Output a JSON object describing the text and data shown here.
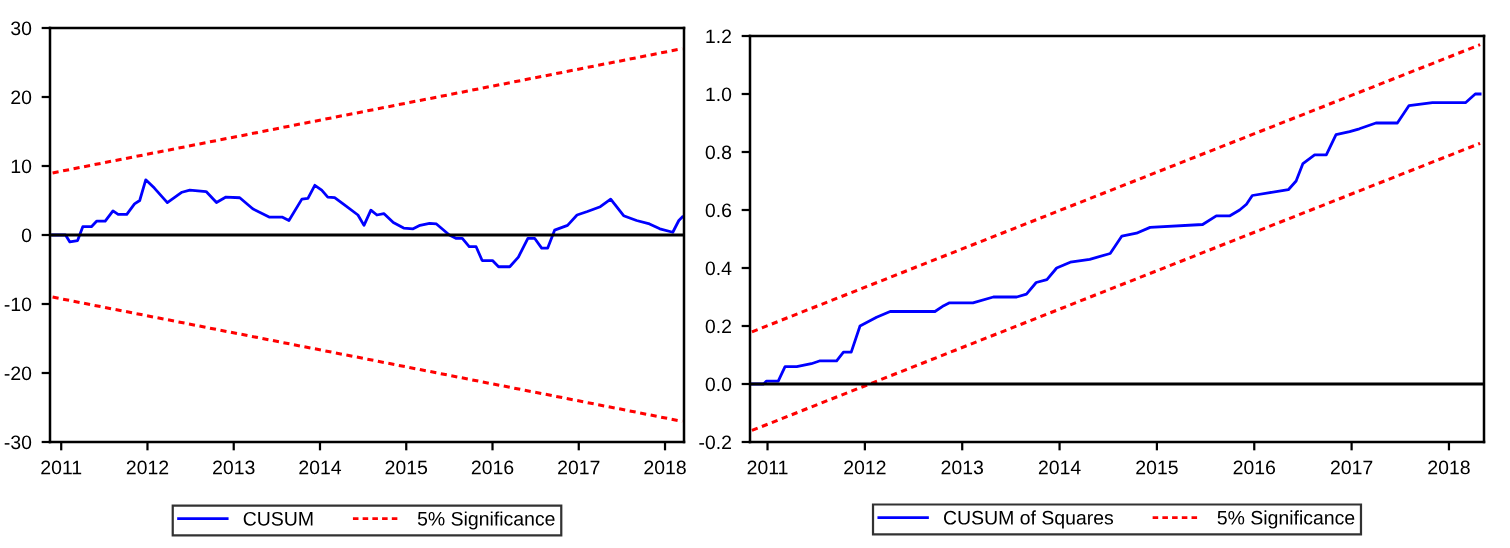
{
  "chart_data": [
    {
      "type": "line",
      "legend": "bottom",
      "grid": false,
      "xlim": [
        2010.87,
        2018.22
      ],
      "xticks": [
        2011,
        2012,
        2013,
        2014,
        2015,
        2016,
        2017,
        2018
      ],
      "ylim": [
        -30,
        30
      ],
      "yticks": [
        -30,
        -20,
        -10,
        0,
        10,
        20,
        30
      ],
      "ref_lines": [
        {
          "axis": "y",
          "value": 0,
          "color": "#000000"
        }
      ],
      "series": [
        {
          "name": "CUSUM",
          "color": "#0000ff",
          "line_style": "solid",
          "x": [
            2010.9,
            2011.05,
            2011.1,
            2011.19,
            2011.25,
            2011.35,
            2011.41,
            2011.51,
            2011.6,
            2011.66,
            2011.76,
            2011.85,
            2011.91,
            2011.98,
            2012.08,
            2012.23,
            2012.4,
            2012.49,
            2012.68,
            2012.8,
            2012.91,
            2013.07,
            2013.22,
            2013.41,
            2013.56,
            2013.64,
            2013.79,
            2013.86,
            2013.94,
            2014.02,
            2014.09,
            2014.17,
            2014.28,
            2014.44,
            2014.51,
            2014.59,
            2014.66,
            2014.74,
            2014.85,
            2014.97,
            2015.08,
            2015.16,
            2015.27,
            2015.35,
            2015.5,
            2015.58,
            2015.65,
            2015.73,
            2015.81,
            2015.88,
            2016.0,
            2016.07,
            2016.2,
            2016.3,
            2016.41,
            2016.49,
            2016.57,
            2016.64,
            2016.72,
            2016.87,
            2016.98,
            2017.1,
            2017.25,
            2017.37,
            2017.52,
            2017.67,
            2017.82,
            2017.94,
            2018.09,
            2018.16,
            2018.2
          ],
          "values": [
            0,
            0,
            -1,
            -0.8,
            1.2,
            1.2,
            2,
            2,
            3.5,
            3,
            3,
            4.5,
            5,
            8,
            6.8,
            4.7,
            6.2,
            6.5,
            6.3,
            4.7,
            5.5,
            5.4,
            3.8,
            2.6,
            2.6,
            2.1,
            5.2,
            5.3,
            7.2,
            6.5,
            5.5,
            5.4,
            4.4,
            2.9,
            1.4,
            3.6,
            2.9,
            3.1,
            1.8,
            1.0,
            0.9,
            1.4,
            1.7,
            1.6,
            0,
            -0.5,
            -0.5,
            -1.7,
            -1.7,
            -3.7,
            -3.7,
            -4.6,
            -4.6,
            -3.2,
            -0.5,
            -0.5,
            -1.9,
            -1.9,
            0.7,
            1.4,
            2.9,
            3.4,
            4.1,
            5.2,
            2.8,
            2.1,
            1.6,
            0.9,
            0.4,
            2.1,
            2.6
          ]
        },
        {
          "name": "5% Significance",
          "color": "#ff0000",
          "line_style": "dashed",
          "x": [
            2010.9,
            2018.2
          ],
          "values": [
            9,
            27
          ]
        },
        {
          "color": "#ff0000",
          "line_style": "dashed",
          "x": [
            2010.9,
            2018.2
          ],
          "values": [
            -9,
            -27
          ]
        }
      ]
    },
    {
      "type": "line",
      "legend": "bottom",
      "grid": false,
      "xlim": [
        2010.82,
        2018.36
      ],
      "xticks": [
        2011,
        2012,
        2013,
        2014,
        2015,
        2016,
        2017,
        2018
      ],
      "ylim": [
        -0.2,
        1.2
      ],
      "yticks": [
        {
          "value": -0.2,
          "label": "-0.2"
        },
        {
          "value": 0,
          "label": "0.0"
        },
        {
          "value": 0.2,
          "label": "0.2"
        },
        {
          "value": 0.4,
          "label": "0.4"
        },
        {
          "value": 0.6,
          "label": "0.6"
        },
        {
          "value": 0.8,
          "label": "0.8"
        },
        {
          "value": 1.0,
          "label": "1.0"
        },
        {
          "value": 1.2,
          "label": "1.2"
        }
      ],
      "ref_lines": [
        {
          "axis": "y",
          "value": 0,
          "color": "#000000"
        }
      ],
      "series": [
        {
          "name": "CUSUM of Squares",
          "color": "#0000ff",
          "line_style": "solid",
          "x": [
            2010.84,
            2010.96,
            2010.99,
            2011.11,
            2011.18,
            2011.3,
            2011.45,
            2011.54,
            2011.71,
            2011.78,
            2011.86,
            2011.95,
            2012.12,
            2012.26,
            2012.72,
            2012.81,
            2012.87,
            2013.11,
            2013.32,
            2013.56,
            2013.66,
            2013.76,
            2013.87,
            2013.97,
            2014.11,
            2014.31,
            2014.52,
            2014.64,
            2014.79,
            2014.93,
            2015.47,
            2015.61,
            2015.75,
            2015.85,
            2015.92,
            2015.98,
            2016.16,
            2016.35,
            2016.43,
            2016.5,
            2016.62,
            2016.74,
            2016.84,
            2016.98,
            2017.08,
            2017.25,
            2017.47,
            2017.59,
            2017.83,
            2017.93,
            2018.17,
            2018.27,
            2018.32
          ],
          "values": [
            0,
            0,
            0.01,
            0.01,
            0.06,
            0.06,
            0.07,
            0.08,
            0.08,
            0.11,
            0.11,
            0.2,
            0.23,
            0.25,
            0.25,
            0.27,
            0.28,
            0.28,
            0.3,
            0.3,
            0.31,
            0.35,
            0.36,
            0.4,
            0.42,
            0.43,
            0.45,
            0.51,
            0.52,
            0.54,
            0.55,
            0.58,
            0.58,
            0.6,
            0.62,
            0.65,
            0.66,
            0.67,
            0.7,
            0.76,
            0.79,
            0.79,
            0.86,
            0.87,
            0.88,
            0.9,
            0.9,
            0.96,
            0.97,
            0.97,
            0.97,
            1.0,
            1.0
          ]
        },
        {
          "name": "5% Significance",
          "color": "#ff0000",
          "line_style": "dashed",
          "x": [
            2010.84,
            2018.32
          ],
          "values": [
            0.18,
            1.17
          ]
        },
        {
          "color": "#ff0000",
          "line_style": "dashed",
          "x": [
            2010.84,
            2018.32
          ],
          "values": [
            -0.16,
            0.83
          ]
        }
      ]
    }
  ]
}
